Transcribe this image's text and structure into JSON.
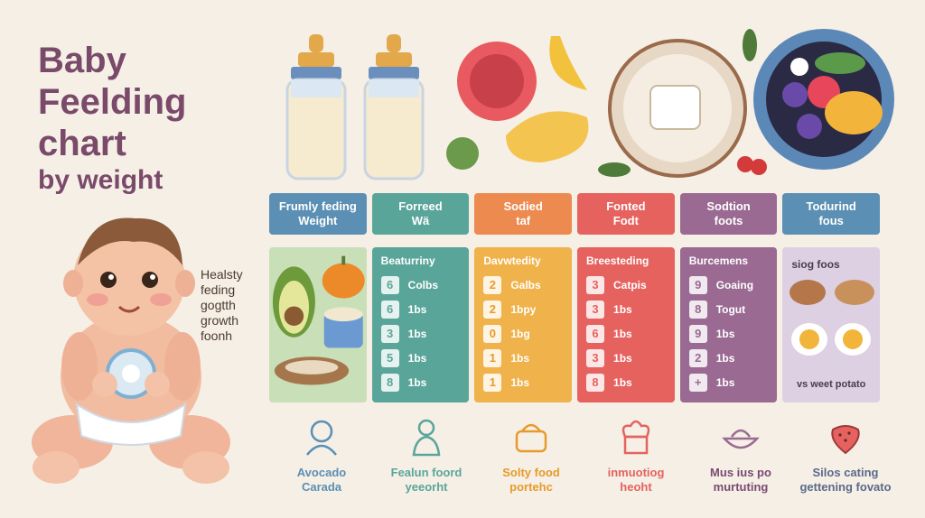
{
  "title": {
    "line1": "Baby",
    "line2": "Feelding",
    "line3": "chart",
    "line4": "by weight"
  },
  "side_note": [
    "Healsty",
    "feding",
    "gogtth",
    "growth",
    "foonh"
  ],
  "colors": {
    "blue": "#5b8fb3",
    "teal": "#5aa59a",
    "orange": "#ec8a4f",
    "red": "#e6625f",
    "purple": "#9a6a92",
    "lilac": "#b8a3c8"
  },
  "headers": [
    {
      "line1": "Frumly feding",
      "line2": "Weight"
    },
    {
      "line1": "Forreed",
      "line2": "Wä"
    },
    {
      "line1": "Sodied",
      "line2": "taf"
    },
    {
      "line1": "Fonted",
      "line2": "Fodt"
    },
    {
      "line1": "Sodtion",
      "line2": "foots"
    },
    {
      "line1": "Todurind",
      "line2": "fous"
    }
  ],
  "cards": [
    {
      "title": "Beaturriny",
      "rows": [
        {
          "n": "6",
          "u": "Colbs"
        },
        {
          "n": "6",
          "u": "1bs"
        },
        {
          "n": "3",
          "u": "1bs"
        },
        {
          "n": "5",
          "u": "1bs"
        },
        {
          "n": "8",
          "u": "1bs"
        }
      ]
    },
    {
      "title": "Davwtedity",
      "rows": [
        {
          "n": "2",
          "u": "Galbs"
        },
        {
          "n": "2",
          "u": "1bpy"
        },
        {
          "n": "0",
          "u": "1bg"
        },
        {
          "n": "1",
          "u": "1bs"
        },
        {
          "n": "1",
          "u": "1bs"
        }
      ]
    },
    {
      "title": "Breesteding",
      "rows": [
        {
          "n": "3",
          "u": "Catpis"
        },
        {
          "n": "3",
          "u": "1bs"
        },
        {
          "n": "6",
          "u": "1bs"
        },
        {
          "n": "3",
          "u": "1bs"
        },
        {
          "n": "8",
          "u": "1bs"
        }
      ]
    },
    {
      "title": "Burcemens",
      "rows": [
        {
          "n": "9",
          "u": "Goaing"
        },
        {
          "n": "8",
          "u": "Togut"
        },
        {
          "n": "9",
          "u": "1bs"
        },
        {
          "n": "2",
          "u": "1bs"
        },
        {
          "n": "+",
          "u": "1bs"
        }
      ]
    }
  ],
  "food_card": {
    "title": "siog foos",
    "bottom": "vs weet potato"
  },
  "bottom_items": [
    {
      "l1": "Avocado",
      "l2": "Carada",
      "icon": "baby-face-icon"
    },
    {
      "l1": "Fealun foord",
      "l2": "yeeorht",
      "icon": "baby-bottle-icon"
    },
    {
      "l1": "Solty food",
      "l2": "portehc",
      "icon": "basket-icon"
    },
    {
      "l1": "inmuotiog",
      "l2": "heoht",
      "icon": "chef-hat-icon"
    },
    {
      "l1": "Mus ius po",
      "l2": "murtuting",
      "icon": "bowl-icon"
    },
    {
      "l1": "Silos cating",
      "l2": "gettening fovato",
      "icon": "strawberry-icon"
    }
  ]
}
